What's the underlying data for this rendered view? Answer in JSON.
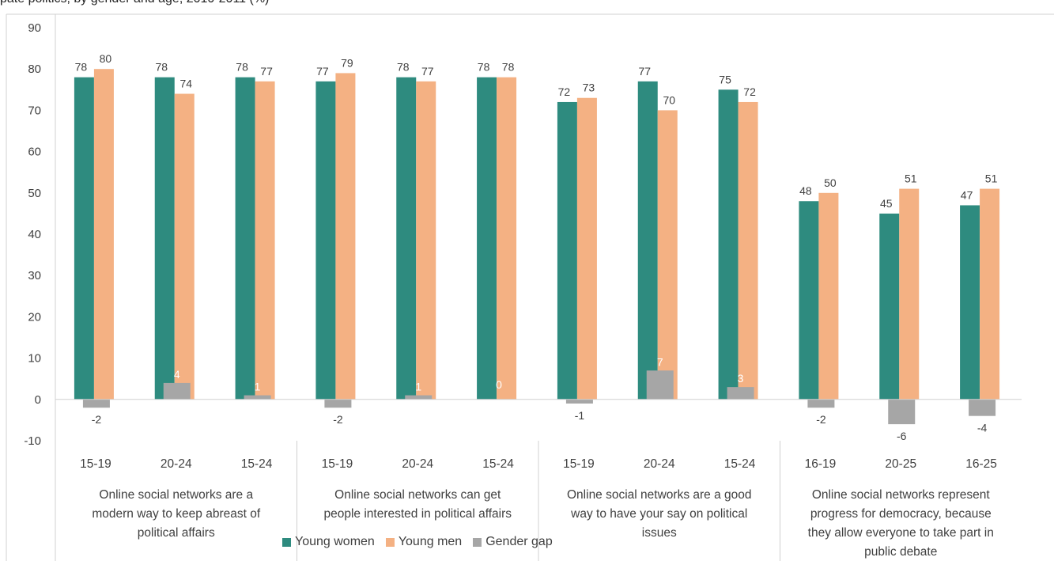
{
  "header_fragment": "pate politics, by gender and age, 2010-2011 (%)",
  "chart_data": {
    "type": "bar",
    "ylim": [
      -10,
      90
    ],
    "yticks": [
      -10,
      0,
      10,
      20,
      30,
      40,
      50,
      60,
      70,
      80,
      90
    ],
    "grid": false,
    "legend_position": "bottom",
    "categories": [
      "15-19",
      "20-24",
      "15-24",
      "15-19",
      "20-24",
      "15-24",
      "15-19",
      "20-24",
      "15-24",
      "16-19",
      "20-25",
      "16-25"
    ],
    "groups": [
      {
        "label": [
          "Online social networks are a",
          "modern way to keep abreast of",
          "political affairs"
        ],
        "span": 3
      },
      {
        "label": [
          "Online social networks can get",
          "people interested in political affairs"
        ],
        "span": 3
      },
      {
        "label": [
          "Online social networks are a good",
          "way to have your say on political",
          "issues"
        ],
        "span": 3
      },
      {
        "label": [
          "Online social networks represent",
          "progress for democracy, because",
          "they allow everyone to take part in",
          "public debate"
        ],
        "span": 3
      }
    ],
    "series": [
      {
        "name": "Young women",
        "color": "#2e8b7f",
        "values": [
          78,
          78,
          78,
          77,
          78,
          78,
          72,
          77,
          75,
          48,
          45,
          47
        ]
      },
      {
        "name": "Young men",
        "color": "#f4b183",
        "values": [
          80,
          74,
          77,
          79,
          77,
          78,
          73,
          70,
          72,
          50,
          51,
          51
        ]
      },
      {
        "name": "Gender gap",
        "color": "#a6a6a6",
        "values": [
          -2,
          4,
          1,
          -2,
          1,
          0,
          -1,
          7,
          3,
          -2,
          -6,
          -4
        ]
      }
    ]
  }
}
